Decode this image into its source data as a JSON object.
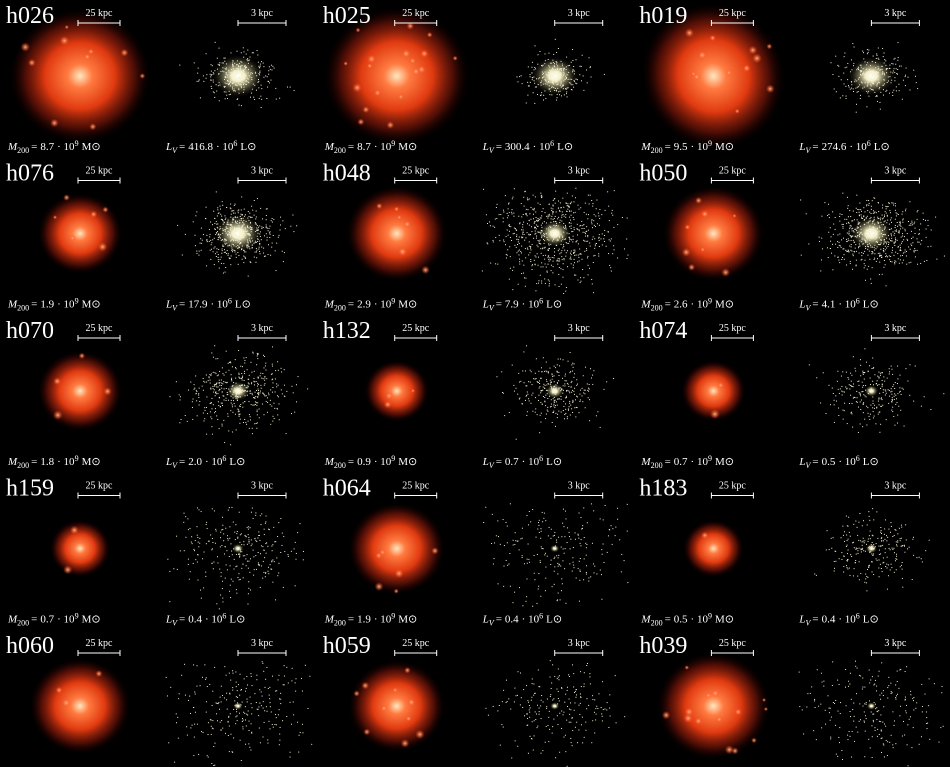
{
  "labels": {
    "dm_scale": "25 kpc",
    "star_scale": "3 kpc",
    "mass_sym": "M",
    "mass_sub": "200",
    "lum_sym": "L",
    "lum_sub": "V",
    "eq": "=",
    "times": "· 10",
    "mass_unit": "M⊙",
    "lum_unit": "L⊙"
  },
  "halos": [
    {
      "name": "h026",
      "mass": "8.7",
      "mass_exp": "9",
      "lum": "416.8",
      "lum_exp": "6"
    },
    {
      "name": "h025",
      "mass": "8.7",
      "mass_exp": "9",
      "lum": "300.4",
      "lum_exp": "6"
    },
    {
      "name": "h019",
      "mass": "9.5",
      "mass_exp": "9",
      "lum": "274.6",
      "lum_exp": "6"
    },
    {
      "name": "h076",
      "mass": "1.9",
      "mass_exp": "9",
      "lum": "17.9",
      "lum_exp": "6"
    },
    {
      "name": "h048",
      "mass": "2.9",
      "mass_exp": "9",
      "lum": "7.9",
      "lum_exp": "6"
    },
    {
      "name": "h050",
      "mass": "2.6",
      "mass_exp": "9",
      "lum": "4.1",
      "lum_exp": "6"
    },
    {
      "name": "h070",
      "mass": "1.8",
      "mass_exp": "9",
      "lum": "2.0",
      "lum_exp": "6"
    },
    {
      "name": "h132",
      "mass": "0.9",
      "mass_exp": "9",
      "lum": "0.7",
      "lum_exp": "6"
    },
    {
      "name": "h074",
      "mass": "0.7",
      "mass_exp": "9",
      "lum": "0.5",
      "lum_exp": "6"
    },
    {
      "name": "h159",
      "mass": "0.7",
      "mass_exp": "9",
      "lum": "0.4",
      "lum_exp": "6"
    },
    {
      "name": "h064",
      "mass": "1.9",
      "mass_exp": "9",
      "lum": "0.4",
      "lum_exp": "6"
    },
    {
      "name": "h183",
      "mass": "0.5",
      "mass_exp": "9",
      "lum": "0.4",
      "lum_exp": "6"
    },
    {
      "name": "h060"
    },
    {
      "name": "h059"
    },
    {
      "name": "h039"
    }
  ]
}
